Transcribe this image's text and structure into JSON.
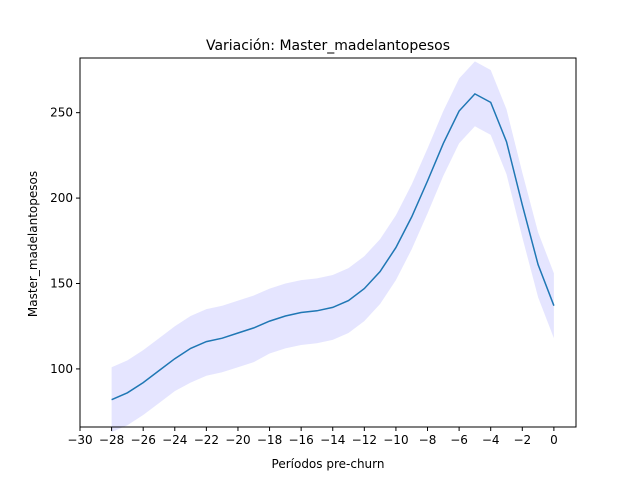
{
  "chart_data": {
    "type": "line",
    "title": "Variación: Master_madelantopesos",
    "xlabel": "Períodos pre-churn",
    "ylabel": "Master_madelantopesos",
    "xlim": [
      -30,
      1.4
    ],
    "ylim": [
      66,
      282
    ],
    "xticks": [
      -30,
      -28,
      -26,
      -24,
      -22,
      -20,
      -18,
      -16,
      -14,
      -12,
      -10,
      -8,
      -6,
      -4,
      -2,
      0
    ],
    "yticks": [
      100,
      150,
      200,
      250
    ],
    "grid": false,
    "series": [
      {
        "color": "#1f77b4",
        "band_color": "#0000ff",
        "x": [
          -28,
          -27,
          -26,
          -25,
          -24,
          -23,
          -22,
          -21,
          -20,
          -19,
          -18,
          -17,
          -16,
          -15,
          -14,
          -13,
          -12,
          -11,
          -10,
          -9,
          -8,
          -7,
          -6,
          -5,
          -4,
          -3,
          -2,
          -1,
          0
        ],
        "y": [
          82,
          86,
          92,
          99,
          106,
          112,
          116,
          118,
          121,
          124,
          128,
          131,
          133,
          134,
          136,
          140,
          147,
          157,
          171,
          189,
          210,
          232,
          251,
          261,
          256,
          233,
          196,
          161,
          137
        ],
        "lower": [
          63,
          67,
          73,
          80,
          87,
          92,
          96,
          98,
          101,
          104,
          109,
          112,
          114,
          115,
          117,
          121,
          128,
          138,
          152,
          170,
          191,
          213,
          232,
          242,
          237,
          214,
          177,
          142,
          118
        ],
        "upper": [
          101,
          105,
          111,
          118,
          125,
          131,
          135,
          137,
          140,
          143,
          147,
          150,
          152,
          153,
          155,
          159,
          166,
          176,
          190,
          208,
          229,
          251,
          270,
          280,
          275,
          252,
          215,
          180,
          156
        ]
      }
    ]
  }
}
